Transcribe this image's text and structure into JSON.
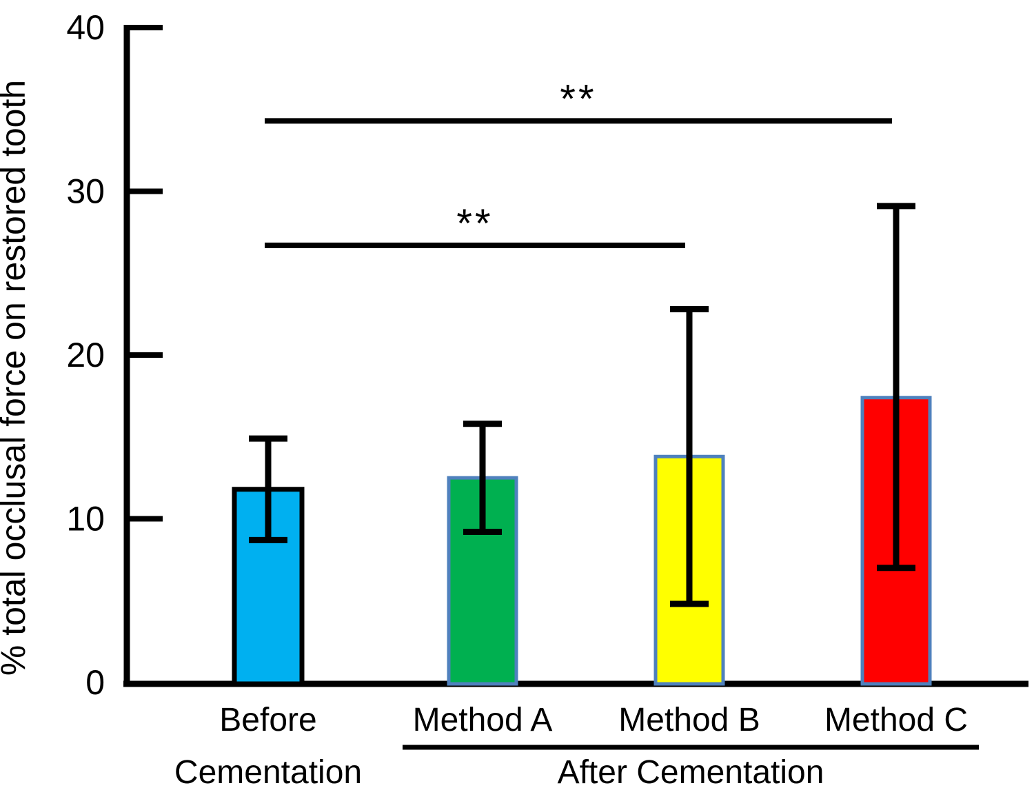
{
  "chart_data": {
    "type": "bar",
    "title": "",
    "xlabel": "",
    "ylabel": "% total occlusal force on restored tooth",
    "ylim": [
      0,
      40
    ],
    "yticks": [
      0,
      10,
      20,
      30,
      40
    ],
    "grid": false,
    "legend": null,
    "categories": [
      "Before Cementation",
      "Method A",
      "Method B",
      "Method C"
    ],
    "category_label_lines": [
      [
        "Before",
        "Cementation"
      ],
      [
        "Method A"
      ],
      [
        "Method B"
      ],
      [
        "Method C"
      ]
    ],
    "values": [
      11.8,
      12.5,
      13.8,
      17.4
    ],
    "error_high": [
      14.9,
      15.8,
      22.8,
      29.1
    ],
    "error_low": [
      8.7,
      9.2,
      4.8,
      7.0
    ],
    "bar_fill_colors": [
      "#00B0F0",
      "#00B050",
      "#FFFF00",
      "#FF0000"
    ],
    "bar_edge_colors": [
      "#000000",
      "#4F81BD",
      "#4F81BD",
      "#4F81BD"
    ],
    "axis_color": "#000000",
    "error_bar_color": "#000000",
    "significance_brackets": [
      {
        "from_category": 0,
        "to_category": 3,
        "label": "**",
        "y_value": 34.3
      },
      {
        "from_category": 0,
        "to_category": 2,
        "label": "**",
        "y_value": 26.7
      }
    ],
    "group_annotation": {
      "label": "After Cementation",
      "from_category": 1,
      "to_category": 3,
      "underlined": true
    }
  }
}
